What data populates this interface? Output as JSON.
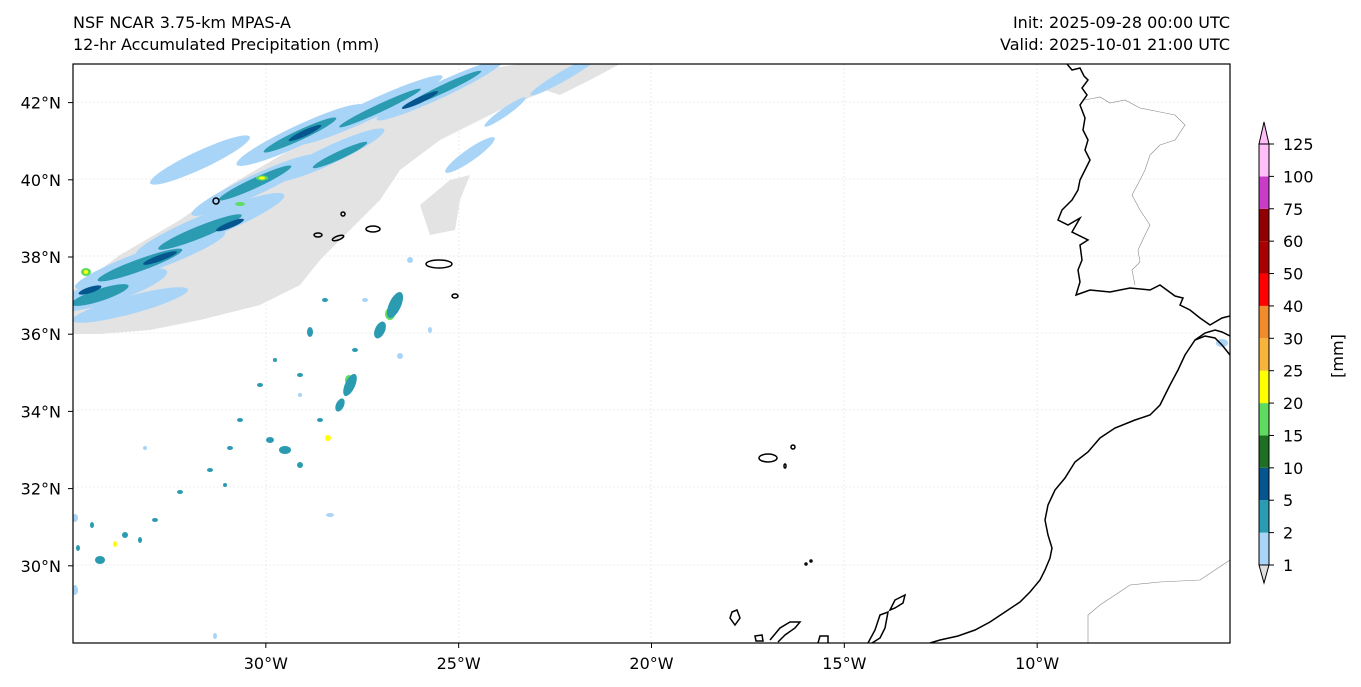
{
  "header": {
    "model_title": "NSF NCAR 3.75-km MPAS-A",
    "field_title": "12-hr Accumulated Precipitation (mm)",
    "init_time": "Init: 2025-09-28 00:00 UTC",
    "valid_time": "Valid: 2025-10-01 21:00 UTC"
  },
  "map": {
    "lon_range": [
      -35,
      -5
    ],
    "lat_range": [
      28,
      43
    ],
    "lat_ticks": [
      {
        "value": 42,
        "label": "42°N"
      },
      {
        "value": 40,
        "label": "40°N"
      },
      {
        "value": 38,
        "label": "38°N"
      },
      {
        "value": 36,
        "label": "36°N"
      },
      {
        "value": 34,
        "label": "34°N"
      },
      {
        "value": 32,
        "label": "32°N"
      },
      {
        "value": 30,
        "label": "30°N"
      }
    ],
    "lon_ticks": [
      {
        "value": -30,
        "label": "30°W"
      },
      {
        "value": -25,
        "label": "25°W"
      },
      {
        "value": -20,
        "label": "20°W"
      },
      {
        "value": -15,
        "label": "15°W"
      },
      {
        "value": -10,
        "label": "10°W"
      }
    ]
  },
  "colorbar": {
    "unit_label": "[mm]",
    "levels": [
      "1",
      "2",
      "5",
      "10",
      "15",
      "20",
      "25",
      "30",
      "40",
      "50",
      "60",
      "75",
      "100",
      "125"
    ],
    "colors": [
      "#e0e0e0",
      "#a8d4f8",
      "#2a9bb0",
      "#05558f",
      "#1e6e23",
      "#5fdc5f",
      "#ffff00",
      "#f8b43a",
      "#f08c2c",
      "#ff0000",
      "#a80000",
      "#900000",
      "#c83cc8",
      "#ffbef8"
    ]
  }
}
